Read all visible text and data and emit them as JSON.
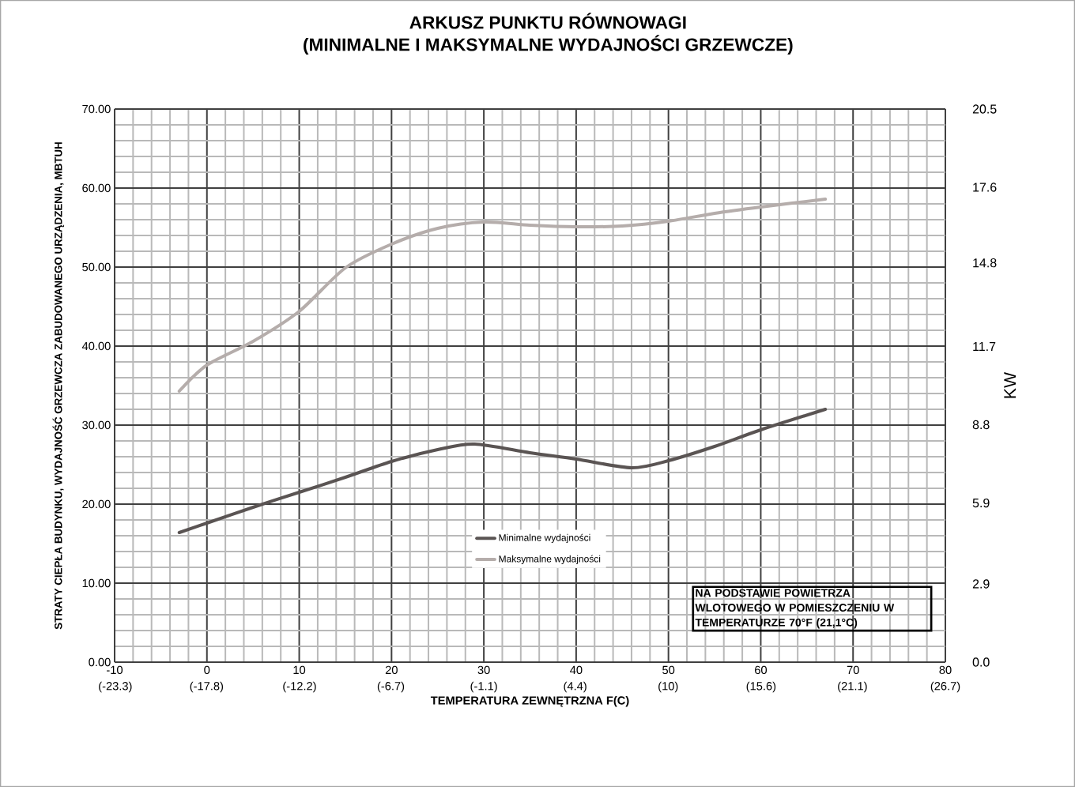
{
  "chart_data": {
    "type": "line",
    "title": "ARKUSZ PUNKTU RÓWNOWAGI",
    "subtitle": "(MINIMALNE I MAKSYMALNE WYDAJNOŚCI GRZEWCZE)",
    "xlabel": "TEMPERATURA ZEWNĘTRZNA F(C)",
    "ylabel": "STRATY CIEPŁA BUDYNKU, WYDAJNOŚĆ GRZEWCZA ZABUDOWANEGO URZĄDZENIA, MBTUH",
    "y2label": "KW",
    "annotations": [
      "NA PODSTAWIE POWIETRZA WLOTOWEGO W POMIESZCZENIU W TEMPERATURZE 70°F (21,1°C)"
    ],
    "xlim": [
      -10,
      80
    ],
    "xticks": [
      -10,
      0,
      10,
      20,
      30,
      40,
      50,
      60,
      70,
      80
    ],
    "x2lim": [
      -23.34,
      26.7
    ],
    "x2ticks": [
      {
        "value": -23.3,
        "label": "(-23.3)"
      },
      {
        "value": -17.8,
        "label": "(-17.8)"
      },
      {
        "value": -12.2,
        "label": "(-12.2)"
      },
      {
        "value": -6.7,
        "label": "(-6.7)"
      },
      {
        "value": -1.1,
        "label": "(-1.1)"
      },
      {
        "value": 4.4,
        "label": "(4.4)"
      },
      {
        "value": 10,
        "label": "(10)"
      },
      {
        "value": 15.6,
        "label": "(15.6)"
      },
      {
        "value": 21.1,
        "label": "(21.1)"
      },
      {
        "value": 26.7,
        "label": "(26.7)"
      }
    ],
    "ylim": [
      0,
      70
    ],
    "yticks": [
      {
        "value": 0,
        "label": "0.00"
      },
      {
        "value": 10,
        "label": "10.00"
      },
      {
        "value": 20,
        "label": "20.00"
      },
      {
        "value": 30,
        "label": "30.00"
      },
      {
        "value": 40,
        "label": "40.00"
      },
      {
        "value": 50,
        "label": "50.00"
      },
      {
        "value": 60,
        "label": "60.00"
      },
      {
        "value": 70,
        "label": "70.00"
      }
    ],
    "y2lim": [
      0,
      20.5
    ],
    "y2ticks": [
      {
        "value": 0,
        "label": "0.0"
      },
      2.9,
      5.9,
      8.8,
      11.7,
      14.8,
      17.6,
      20.5
    ],
    "grid": true,
    "legend": "bottom",
    "series": [
      {
        "name": "Minimalne wydajności",
        "color": "#5a5453",
        "x": [
          -3,
          0,
          5,
          10,
          15,
          20,
          25,
          29,
          35,
          40,
          46,
          50,
          55,
          60,
          67
        ],
        "values": [
          16.4,
          17.6,
          19.6,
          21.5,
          23.4,
          25.4,
          26.9,
          27.6,
          26.5,
          25.7,
          24.6,
          25.5,
          27.3,
          29.4,
          32.0
        ]
      },
      {
        "name": "Maksymalne wydajności",
        "color": "#b5adab",
        "x": [
          -3,
          0,
          5,
          10,
          15,
          20,
          25,
          30,
          35,
          40,
          45,
          50,
          55,
          60,
          67
        ],
        "values": [
          34.3,
          37.6,
          40.6,
          44.4,
          49.9,
          52.9,
          54.9,
          55.7,
          55.3,
          55.1,
          55.2,
          55.8,
          56.8,
          57.6,
          58.6
        ]
      }
    ]
  }
}
